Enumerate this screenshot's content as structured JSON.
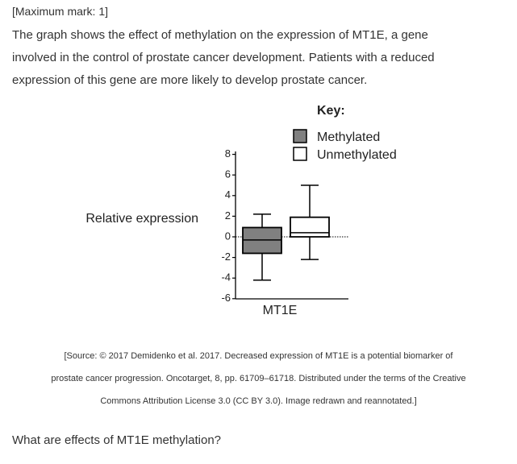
{
  "header": {
    "mark": "[Maximum mark: 1]"
  },
  "intro": {
    "lines": [
      "The graph shows the effect of methylation on the expression of MT1E, a gene",
      "involved in the control of prostate cancer development. Patients with a reduced",
      "expression of this gene are more likely to develop prostate cancer."
    ]
  },
  "chart_data": {
    "type": "boxplot",
    "ylabel": "Relative expression",
    "xlabel": "MT1E",
    "ylim": [
      -6,
      9
    ],
    "yticks": [
      -6,
      -4,
      -2,
      0,
      2,
      4,
      6,
      8
    ],
    "legend": {
      "title": "Key:",
      "placement": "top-right"
    },
    "series": [
      {
        "name": "Methylated",
        "color": "#808080",
        "whisker_low": -4.2,
        "q1": -1.6,
        "median": -0.3,
        "q3": 0.9,
        "whisker_high": 2.2
      },
      {
        "name": "Unmethylated",
        "color": "#ffffff",
        "whisker_low": -2.2,
        "q1": 0.0,
        "median": 0.4,
        "q3": 1.9,
        "whisker_high": 5.0
      }
    ],
    "reference_line": {
      "y": 0,
      "style": "dotted"
    }
  },
  "source": {
    "lines": [
      "[Source: © 2017 Demidenko et al. 2017. Decreased expression of MT1E is a potential biomarker of",
      "prostate cancer progression. Oncotarget, 8, pp. 61709–61718. Distributed under the terms of the Creative",
      "Commons Attribution License 3.0 (CC BY 3.0). Image redrawn and reannotated.]"
    ]
  },
  "question": {
    "text": "What are effects of MT1E methylation?"
  }
}
